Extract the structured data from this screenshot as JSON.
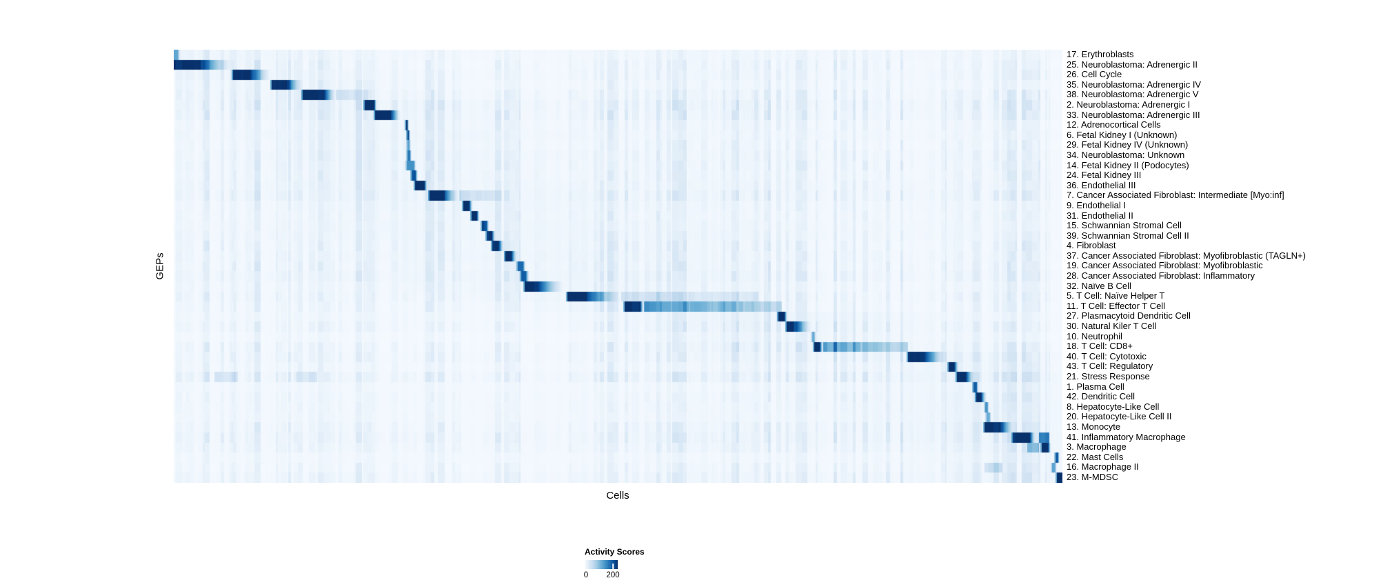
{
  "chart_data": {
    "type": "heatmap",
    "title": "",
    "xlabel": "Cells",
    "ylabel": "GEPs",
    "colormap": "Blues",
    "colormap_stops": [
      "#f7fbff",
      "#deebf7",
      "#c6dbef",
      "#9ecae1",
      "#6baed6",
      "#4292c6",
      "#2171b5",
      "#08519c",
      "#08306b"
    ],
    "colorbar": {
      "title": "Activity Scores",
      "tick_labels": [
        "0",
        "200"
      ],
      "tick_values": [
        0,
        200
      ],
      "value_max": 234
    },
    "legend_note": "activity score 0 = white, 200+ = dark navy",
    "rows": [
      {
        "label": "17. Erythroblasts",
        "core": [
          0.0,
          0.004
        ],
        "peak": 0.55,
        "fade": 0.003,
        "namp": 0.5
      },
      {
        "label": "25. Neuroblastoma: Adrenergic II",
        "core": [
          0.0,
          0.0295
        ],
        "peak": 1.0,
        "fade": 0.037,
        "namp": 0.9
      },
      {
        "label": "26. Cell Cycle",
        "core": [
          0.066,
          0.086
        ],
        "peak": 1.0,
        "fade": 0.023,
        "namp": 0.8
      },
      {
        "label": "35. Neuroblastoma: Adrenergic IV",
        "core": [
          0.1095,
          0.128
        ],
        "peak": 1.0,
        "fade": 0.0156,
        "namp": 0.7
      },
      {
        "label": "38. Neuroblastoma: Adrenergic V",
        "core": [
          0.1444,
          0.169
        ],
        "peak": 1.0,
        "fade": 0.0132,
        "trail": [
          0.218,
          0.14
        ],
        "namp": 1.2
      },
      {
        "label": "2. Neuroblastoma: Adrenergic I",
        "core": [
          0.2143,
          0.2252
        ],
        "peak": 1.0,
        "fade": 0.003,
        "namp": 1.3
      },
      {
        "label": "33. Neuroblastoma: Adrenergic III",
        "core": [
          0.226,
          0.244
        ],
        "peak": 1.0,
        "fade": 0.011,
        "namp": 1.25
      },
      {
        "label": "12. Adrenocortical Cells",
        "core": [
          0.2609,
          0.2624
        ],
        "peak": 1.0,
        "fade": 0.002,
        "namp": 0.8
      },
      {
        "label": "6. Fetal Kidney I (Unknown)",
        "core": [
          0.2624,
          0.264
        ],
        "peak": 0.95,
        "fade": 0.002,
        "namp": 0.6
      },
      {
        "label": "29. Fetal Kidney IV (Unknown)",
        "core": [
          0.2624,
          0.2647
        ],
        "peak": 0.55,
        "fade": 0.002,
        "namp": 0.9
      },
      {
        "label": "34. Neuroblastoma: Unknown",
        "core": [
          0.2624,
          0.2655
        ],
        "peak": 0.7,
        "fade": 0.002,
        "namp": 0.85
      },
      {
        "label": "14. Fetal Kidney II (Podocytes)",
        "core": [
          0.2616,
          0.2702
        ],
        "peak": 0.6,
        "fade": 0.002,
        "namp": 1.0
      },
      {
        "label": "24. Fetal Kidney III",
        "core": [
          0.267,
          0.2717
        ],
        "peak": 0.85,
        "fade": 0.003,
        "namp": 0.9
      },
      {
        "label": "36. Endothelial III",
        "core": [
          0.271,
          0.2818
        ],
        "peak": 1.0,
        "fade": 0.003,
        "namp": 0.8
      },
      {
        "label": "7. Cancer Associated Fibroblast: Intermediate [Myo:inf]",
        "core": [
          0.2872,
          0.3036
        ],
        "peak": 1.0,
        "fade": 0.017,
        "trail": [
          0.369,
          0.16
        ],
        "namp": 1.1
      },
      {
        "label": "9. Endothelial I",
        "core": [
          0.3253,
          0.3323
        ],
        "peak": 1.0,
        "fade": 0.004,
        "namp": 0.7
      },
      {
        "label": "31. Endothelial II",
        "core": [
          0.3346,
          0.3409
        ],
        "peak": 1.0,
        "fade": 0.003,
        "namp": 0.75
      },
      {
        "label": "15. Schwannian Stromal Cell",
        "core": [
          0.3463,
          0.3517
        ],
        "peak": 0.9,
        "fade": 0.003,
        "namp": 0.6
      },
      {
        "label": "39. Schwannian Stromal Cell II",
        "core": [
          0.3517,
          0.3579
        ],
        "peak": 0.95,
        "fade": 0.004,
        "namp": 0.7
      },
      {
        "label": "4. Fibroblast",
        "core": [
          0.3579,
          0.3649
        ],
        "peak": 1.0,
        "fade": 0.007,
        "namp": 1.0
      },
      {
        "label": "37. Cancer Associated Fibroblast: Myofibroblastic (TAGLN+)",
        "core": [
          0.3727,
          0.3797
        ],
        "peak": 1.0,
        "fade": 0.006,
        "namp": 0.9
      },
      {
        "label": "19. Cancer Associated Fibroblast: Myofibroblastic",
        "core": [
          0.3866,
          0.3929
        ],
        "peak": 0.75,
        "fade": 0.003,
        "namp": 1.1
      },
      {
        "label": "28. Cancer Associated Fibroblast: Inflammatory",
        "core": [
          0.3905,
          0.396
        ],
        "peak": 0.8,
        "fade": 0.004,
        "namp": 1.0
      },
      {
        "label": "32. Naïve B Cell",
        "core": [
          0.3944,
          0.41
        ],
        "peak": 1.0,
        "fade": 0.0287,
        "namp": 0.8
      },
      {
        "label": "5. T Cell: Naïve Helper T",
        "core": [
          0.4425,
          0.4643
        ],
        "peak": 1.0,
        "fade": 0.0388,
        "trail": [
          0.658,
          0.13
        ],
        "namp": 1.0
      },
      {
        "label": "11. T Cell: Effector T Cell",
        "core": [
          0.507,
          0.5248
        ],
        "peak": 1.0,
        "fade": 0.004,
        "trail": [
          0.684,
          0.45
        ],
        "namp": 0.9
      },
      {
        "label": "27. Plasmacytoid Dendritic Cell",
        "core": [
          0.6801,
          0.6871
        ],
        "peak": 1.0,
        "fade": 0.003,
        "namp": 0.5
      },
      {
        "label": "30. Natural Kiler T Cell",
        "core": [
          0.6894,
          0.6972
        ],
        "peak": 1.0,
        "fade": 0.0202,
        "namp": 0.9
      },
      {
        "label": "10. Neutrophil",
        "core": [
          0.7182,
          0.7205
        ],
        "peak": 0.5,
        "fade": 0.002,
        "namp": 0.5
      },
      {
        "label": "18. T Cell: CD8+",
        "core": [
          0.7205,
          0.7267
        ],
        "peak": 1.0,
        "fade": 0.004,
        "trail": [
          0.826,
          0.42
        ],
        "namp": 1.1
      },
      {
        "label": "40. T Cell: Cytotoxic",
        "core": [
          0.826,
          0.8447
        ],
        "peak": 1.0,
        "fade": 0.0256,
        "namp": 1.0
      },
      {
        "label": "43. T Cell: Regulatory",
        "core": [
          0.8719,
          0.8781
        ],
        "peak": 1.0,
        "fade": 0.005,
        "namp": 0.8
      },
      {
        "label": "21. Stress Response",
        "core": [
          0.8812,
          0.8913
        ],
        "peak": 1.0,
        "fade": 0.0093,
        "extras": [
          [
            0.045,
            0.072,
            0.1
          ],
          [
            0.138,
            0.161,
            0.08
          ]
        ],
        "namp": 1.3
      },
      {
        "label": "1. Plasma Cell",
        "core": [
          0.8999,
          0.903
        ],
        "peak": 0.8,
        "fade": 0.002,
        "namp": 0.45
      },
      {
        "label": "42. Dendritic Cell",
        "core": [
          0.903,
          0.9084
        ],
        "peak": 1.0,
        "fade": 0.0062,
        "namp": 0.7
      },
      {
        "label": "8. Hepatocyte-Like Cell",
        "core": [
          0.913,
          0.9153
        ],
        "peak": 0.6,
        "fade": 0.002,
        "namp": 0.5
      },
      {
        "label": "20. Hepatocyte-Like Cell II",
        "core": [
          0.9146,
          0.9177
        ],
        "peak": 0.5,
        "fade": 0.002,
        "namp": 0.45
      },
      {
        "label": "13. Monocyte",
        "core": [
          0.9122,
          0.9301
        ],
        "peak": 1.0,
        "fade": 0.0132,
        "namp": 1.0
      },
      {
        "label": "41. Inflammatory Macrophage",
        "core": [
          0.9441,
          0.9627
        ],
        "peak": 1.0,
        "fade": 0.0062,
        "extras": [
          [
            0.973,
            0.985,
            0.5
          ]
        ],
        "namp": 1.1
      },
      {
        "label": "3. Macrophage",
        "core": [
          0.9767,
          0.9837
        ],
        "peak": 1.0,
        "fade": 0.003,
        "extras": [
          [
            0.96,
            0.973,
            0.28
          ]
        ],
        "namp": 0.9
      },
      {
        "label": "22. Mast Cells",
        "core": [
          0.9922,
          0.9946
        ],
        "peak": 0.8,
        "fade": 0.002,
        "namp": 0.4
      },
      {
        "label": "16. Macrophage II",
        "core": [
          0.9883,
          0.9914
        ],
        "peak": 0.55,
        "fade": 0.002,
        "extras": [
          [
            0.9122,
            0.9324,
            0.15
          ]
        ],
        "namp": 0.8
      },
      {
        "label": "23. M-MDSC",
        "core": [
          0.9937,
          1.0
        ],
        "peak": 1.0,
        "fade": 0.0,
        "namp": 0.9
      }
    ]
  }
}
